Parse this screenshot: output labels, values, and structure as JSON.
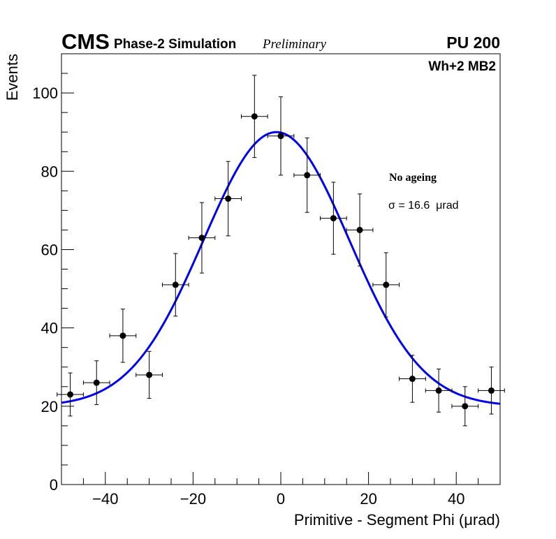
{
  "chart_data": {
    "type": "scatter",
    "title": "",
    "header": {
      "experiment": "CMS",
      "subtitle": "Phase-2 Simulation",
      "status": "Preliminary",
      "pileup": "PU 200"
    },
    "annotations": {
      "chamber": "Wh+2 MB2",
      "condition": "No ageing",
      "fit_result": "σ = 16.6  μrad"
    },
    "xlabel": "Primitive - Segment Phi (μrad)",
    "ylabel": "Events",
    "xlim": [
      -50,
      50
    ],
    "ylim": [
      0,
      110
    ],
    "xticks": [
      -40,
      -20,
      0,
      20,
      40
    ],
    "xtick_labels": [
      "−40",
      "−20",
      "0",
      "20",
      "40"
    ],
    "yticks": [
      0,
      20,
      40,
      60,
      80,
      100
    ],
    "ytick_labels": [
      "0",
      "20",
      "40",
      "60",
      "80",
      "100"
    ],
    "grid": false,
    "series": [
      {
        "name": "data",
        "color": "#000000",
        "bin_width": 6,
        "x": [
          -48,
          -42,
          -36,
          -30,
          -24,
          -18,
          -12,
          -6,
          0,
          6,
          12,
          18,
          24,
          30,
          36,
          42,
          48
        ],
        "y": [
          23,
          26,
          38,
          28,
          51,
          63,
          73,
          94,
          89,
          79,
          68,
          65,
          51,
          27,
          24,
          20,
          24
        ],
        "yerr": [
          5.5,
          5.6,
          6.8,
          6.0,
          8.0,
          9.0,
          9.5,
          10.5,
          10.0,
          9.5,
          9.2,
          9.2,
          8.2,
          6.0,
          5.5,
          5.0,
          6.0
        ]
      },
      {
        "name": "gaussian-fit",
        "color": "#0000ee",
        "function": "gaussian_plus_constant",
        "params": {
          "amplitude": 70,
          "mean": -1,
          "sigma": 16.6,
          "constant": 20
        }
      }
    ]
  }
}
